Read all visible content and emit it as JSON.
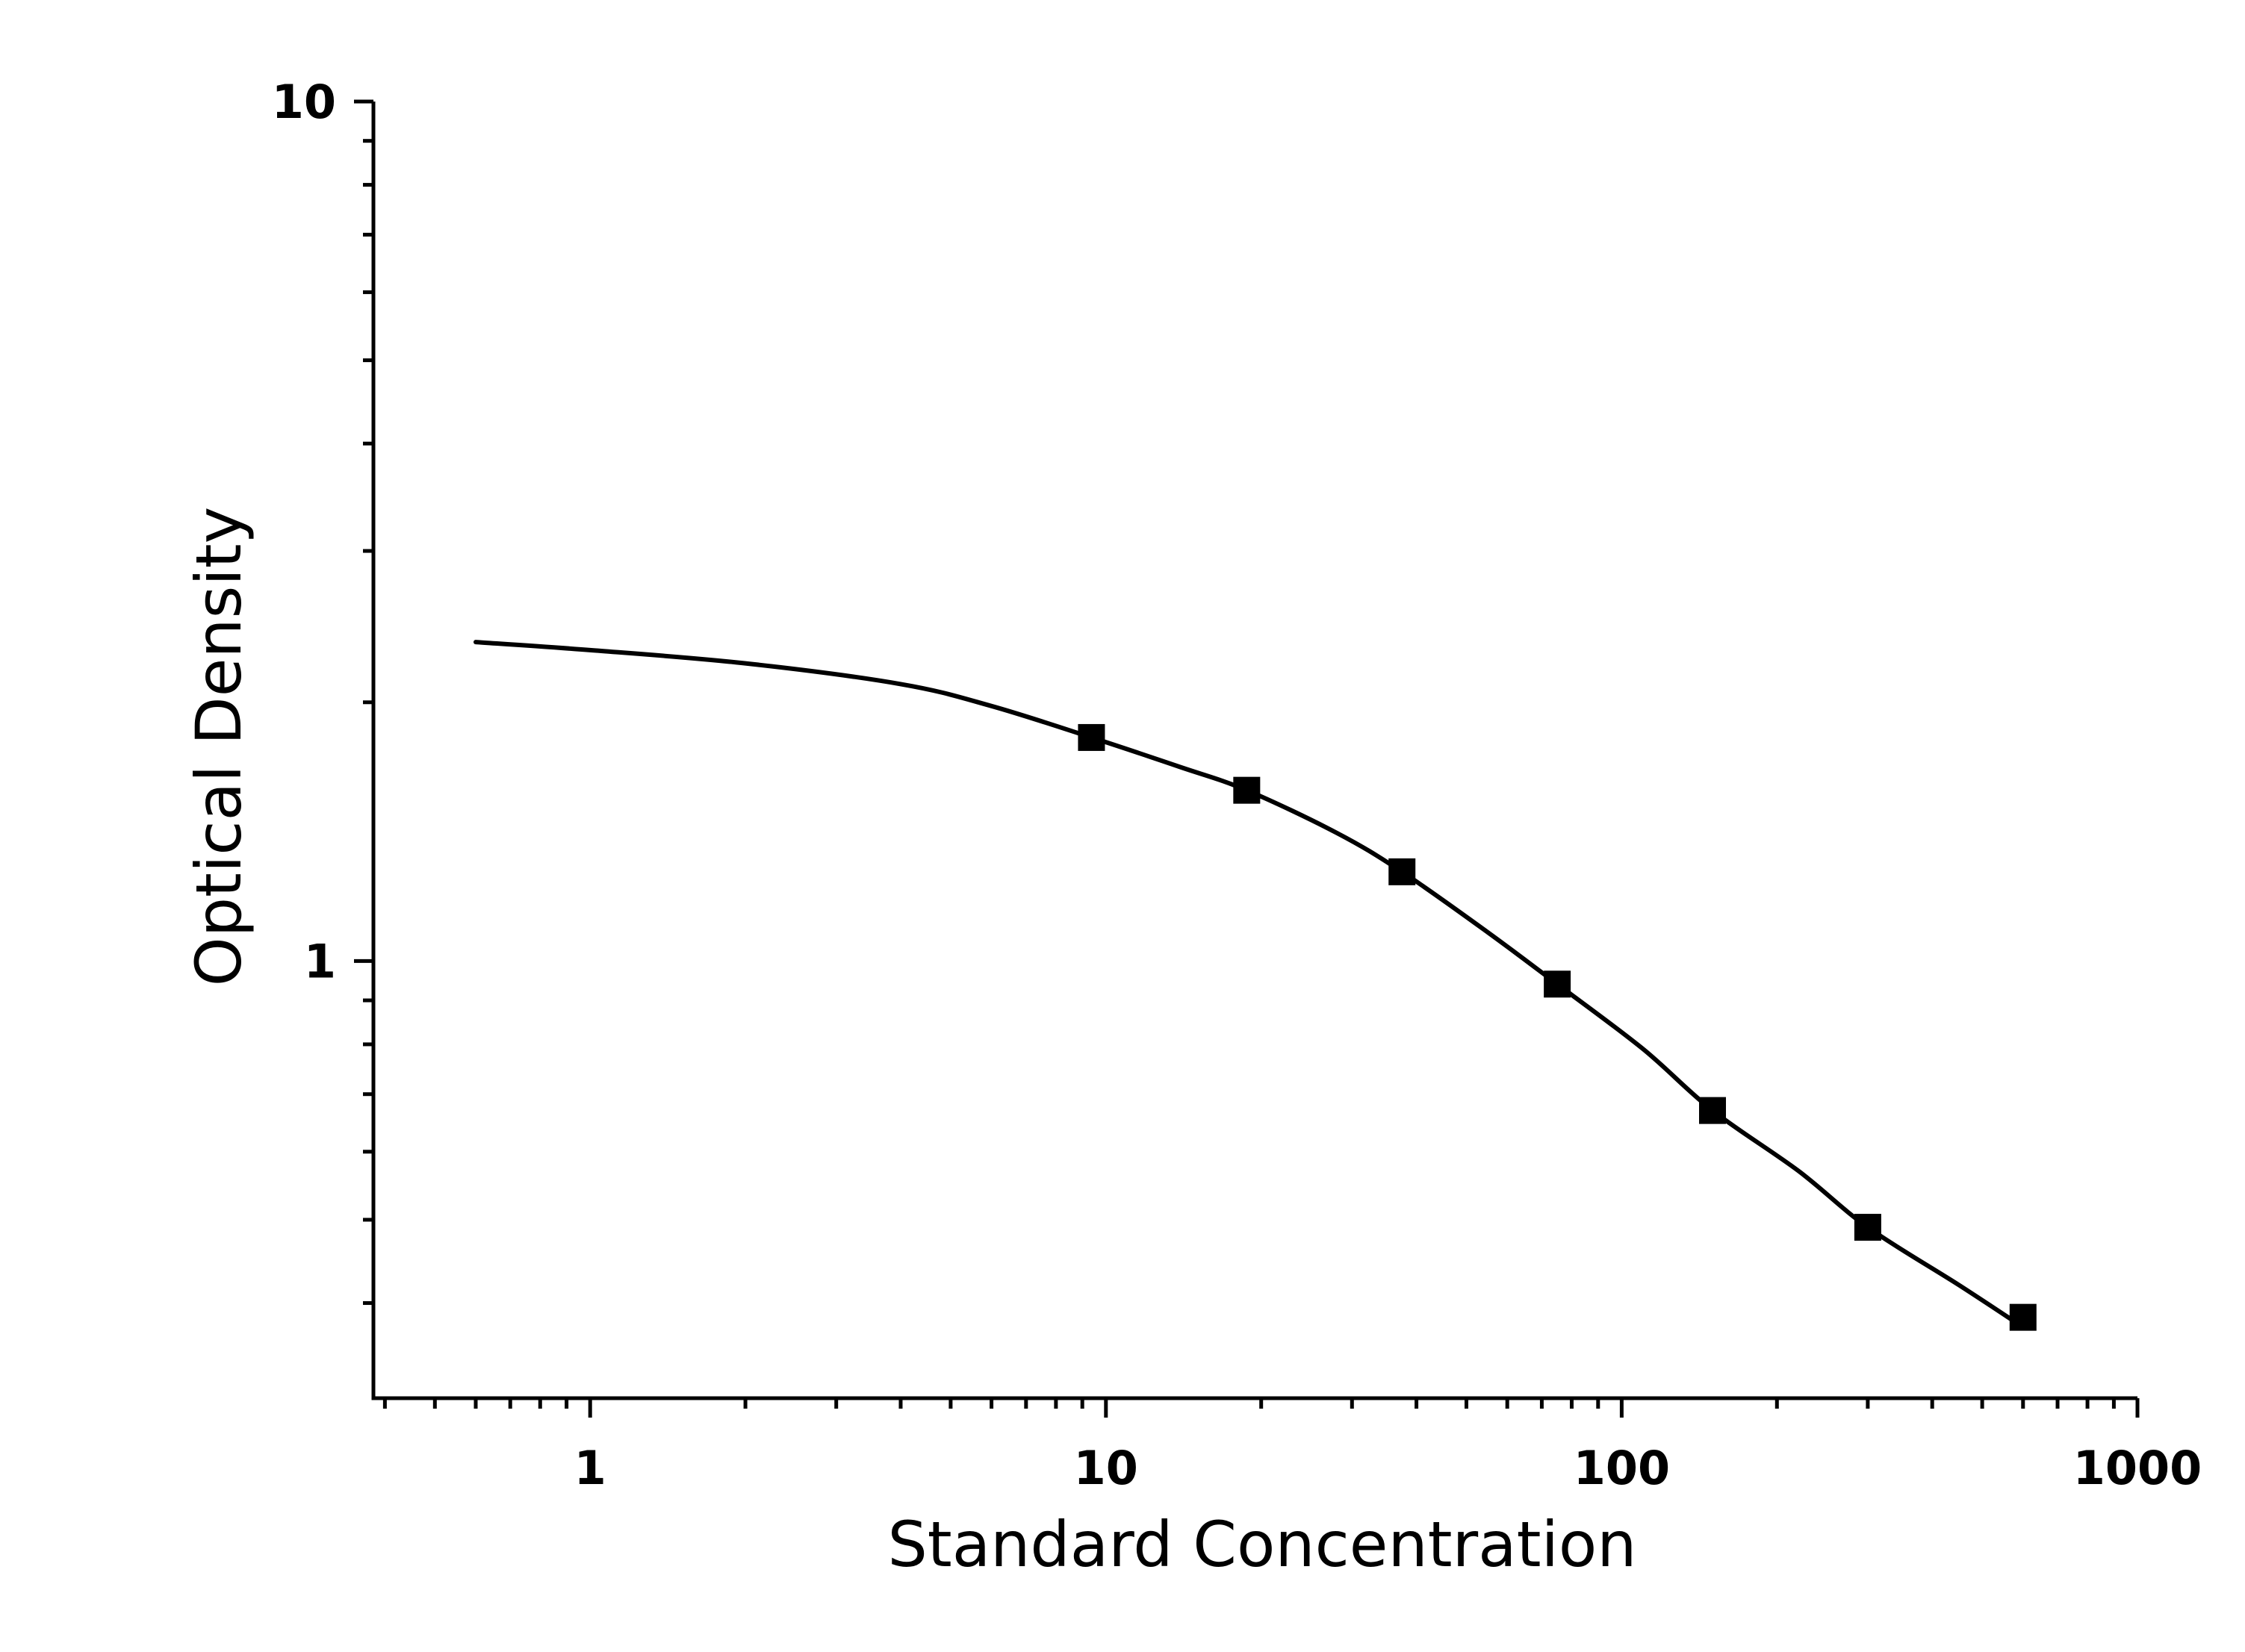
{
  "chart_data": {
    "type": "scatter",
    "title": "",
    "xlabel": "Standard Concentration",
    "ylabel": "Optical Density",
    "x_scale": "log",
    "y_scale": "log",
    "xlim": [
      0.38,
      1000
    ],
    "ylim": [
      0.31,
      10
    ],
    "x_ticks": [
      {
        "value": 1,
        "label": "1"
      },
      {
        "value": 10,
        "label": "10"
      },
      {
        "value": 100,
        "label": "100"
      },
      {
        "value": 1000,
        "label": "1000"
      }
    ],
    "y_ticks": [
      {
        "value": 1,
        "label": "1"
      },
      {
        "value": 10,
        "label": "10"
      }
    ],
    "grid": false,
    "legend": "none",
    "series": [
      {
        "kind": "points",
        "marker": "square",
        "color": "#000000",
        "x": [
          9.375,
          18.75,
          37.5,
          75,
          150,
          300,
          600
        ],
        "y": [
          1.82,
          1.58,
          1.27,
          0.94,
          0.67,
          0.49,
          0.385
        ]
      },
      {
        "kind": "fit-line",
        "color": "#000000",
        "x": [
          0.6,
          1,
          2,
          4,
          6,
          9.375,
          14,
          18.75,
          28,
          37.5,
          55,
          75,
          110,
          150,
          220,
          300,
          450,
          600
        ],
        "y": [
          2.35,
          2.3,
          2.22,
          2.1,
          1.98,
          1.82,
          1.68,
          1.58,
          1.41,
          1.27,
          1.08,
          0.94,
          0.79,
          0.67,
          0.57,
          0.49,
          0.42,
          0.375
        ]
      }
    ]
  }
}
